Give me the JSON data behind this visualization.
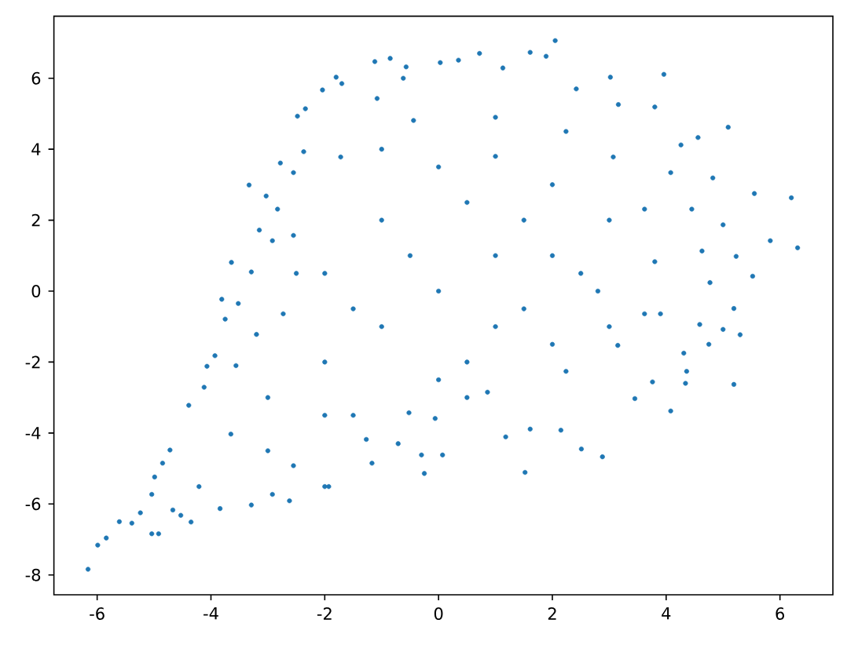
{
  "chart_data": {
    "type": "scatter",
    "color": "#1f77b4",
    "marker": "circle",
    "x": [
      -1.12,
      -0.85,
      -1.8,
      -1.7,
      -2.04,
      -2.34,
      -2.48,
      -2.78,
      -3.33,
      -3.03,
      -3.15,
      -3.64,
      -3.81,
      -0.57,
      -0.62,
      -1.08,
      -2.37,
      -2.55,
      -2.83,
      -2.92,
      -3.29,
      -3.52,
      2.05,
      1.61,
      1.89,
      0.72,
      0.35,
      3.96,
      3.02,
      5.09,
      4.56,
      4.26,
      5.55,
      6.2,
      5.83,
      6.31,
      5.52,
      5.23,
      5.0,
      4.82,
      5.19,
      3.8,
      3.16,
      2.42,
      1.13,
      0.03,
      4.08,
      4.45,
      4.63,
      4.77,
      -6.16,
      -5.99,
      -5.84,
      -5.61,
      -5.39,
      -5.24,
      -5.04,
      -4.92,
      -5.04,
      -4.99,
      -4.85,
      -4.72,
      -4.35,
      -4.67,
      -4.53,
      -4.39,
      -4.12,
      -4.07,
      -3.93,
      -3.75,
      -3.29,
      -2.92,
      -2.62,
      -2.0,
      -1.93,
      -3.84,
      -1.17,
      -0.71,
      -0.25,
      -0.3,
      1.52,
      2.51,
      2.88,
      2.15,
      1.61,
      1.18,
      0.07,
      4.08,
      3.45,
      3.76,
      4.34,
      5.19,
      4.75,
      5.3,
      5.0,
      4.31,
      4.36,
      4.59,
      -0.44,
      -1.72,
      -2.55,
      -2.73,
      2.24,
      3.07,
      3.62,
      3.8,
      3.9,
      -4.21,
      -2.55,
      -1.27,
      -0.06,
      -3.65,
      -3.56,
      -3.2,
      -0.52,
      0.86,
      2.24,
      3.15,
      3.62,
      1.0,
      0.0,
      1.0,
      -1.0,
      0.5,
      -1.0,
      2.0,
      2.0,
      -2.0,
      -3.0,
      1.0,
      0.0,
      1.5,
      -2.0,
      2.8,
      -1.5,
      0.5,
      -1.0,
      1.0,
      3.0,
      3.0,
      -2.0,
      -3.0,
      0.0,
      2.0,
      -0.5,
      1.5,
      -1.5,
      0.5,
      2.5,
      -2.5
    ],
    "values": [
      6.47,
      6.56,
      6.03,
      5.85,
      5.67,
      5.14,
      4.93,
      3.61,
      2.99,
      2.68,
      1.72,
      0.81,
      -0.23,
      6.32,
      6.0,
      5.43,
      3.93,
      3.34,
      2.31,
      1.42,
      0.54,
      -0.35,
      7.06,
      6.73,
      6.62,
      6.7,
      6.51,
      6.11,
      6.03,
      4.62,
      4.33,
      4.12,
      2.75,
      2.63,
      1.42,
      1.22,
      0.42,
      0.98,
      1.87,
      3.19,
      -0.49,
      5.19,
      5.26,
      5.7,
      6.29,
      6.44,
      3.34,
      2.31,
      1.13,
      0.24,
      -7.84,
      -7.16,
      -6.96,
      -6.5,
      -6.54,
      -6.25,
      -6.84,
      -6.84,
      -5.73,
      -5.24,
      -4.85,
      -4.48,
      -6.51,
      -6.17,
      -6.32,
      -3.22,
      -2.71,
      -2.12,
      -1.82,
      -0.79,
      -6.03,
      -5.73,
      -5.91,
      -5.51,
      -5.51,
      -6.13,
      -4.85,
      -4.3,
      -5.14,
      -4.62,
      -5.11,
      -4.45,
      -4.67,
      -3.92,
      -3.89,
      -4.11,
      -4.62,
      -3.38,
      -3.03,
      -2.56,
      -2.6,
      -2.63,
      -1.5,
      -1.23,
      -1.08,
      -1.75,
      -2.26,
      -0.94,
      4.81,
      3.78,
      1.57,
      -0.64,
      4.5,
      3.78,
      2.31,
      0.83,
      -0.64,
      -5.51,
      -4.92,
      -4.18,
      -3.59,
      -4.03,
      -2.1,
      -1.22,
      -3.43,
      -2.85,
      -2.26,
      -1.53,
      -0.64,
      4.9,
      0.0,
      1.0,
      -1.0,
      2.5,
      2.0,
      1.0,
      3.0,
      -2.0,
      -3.0,
      -1.0,
      3.5,
      -0.5,
      0.5,
      0.0,
      -3.5,
      -2.0,
      4.0,
      3.8,
      2.0,
      -1.0,
      -3.5,
      -4.5,
      -2.5,
      -1.5,
      1.0,
      2.0,
      -0.5,
      -3.0,
      0.5,
      0.5
    ],
    "xlim": [
      -6.76,
      6.93
    ],
    "ylim": [
      -8.56,
      7.75
    ],
    "xticks": [
      -6,
      -4,
      -2,
      0,
      2,
      4,
      6
    ],
    "yticks": [
      -8,
      -6,
      -4,
      -2,
      0,
      2,
      4,
      6
    ]
  }
}
